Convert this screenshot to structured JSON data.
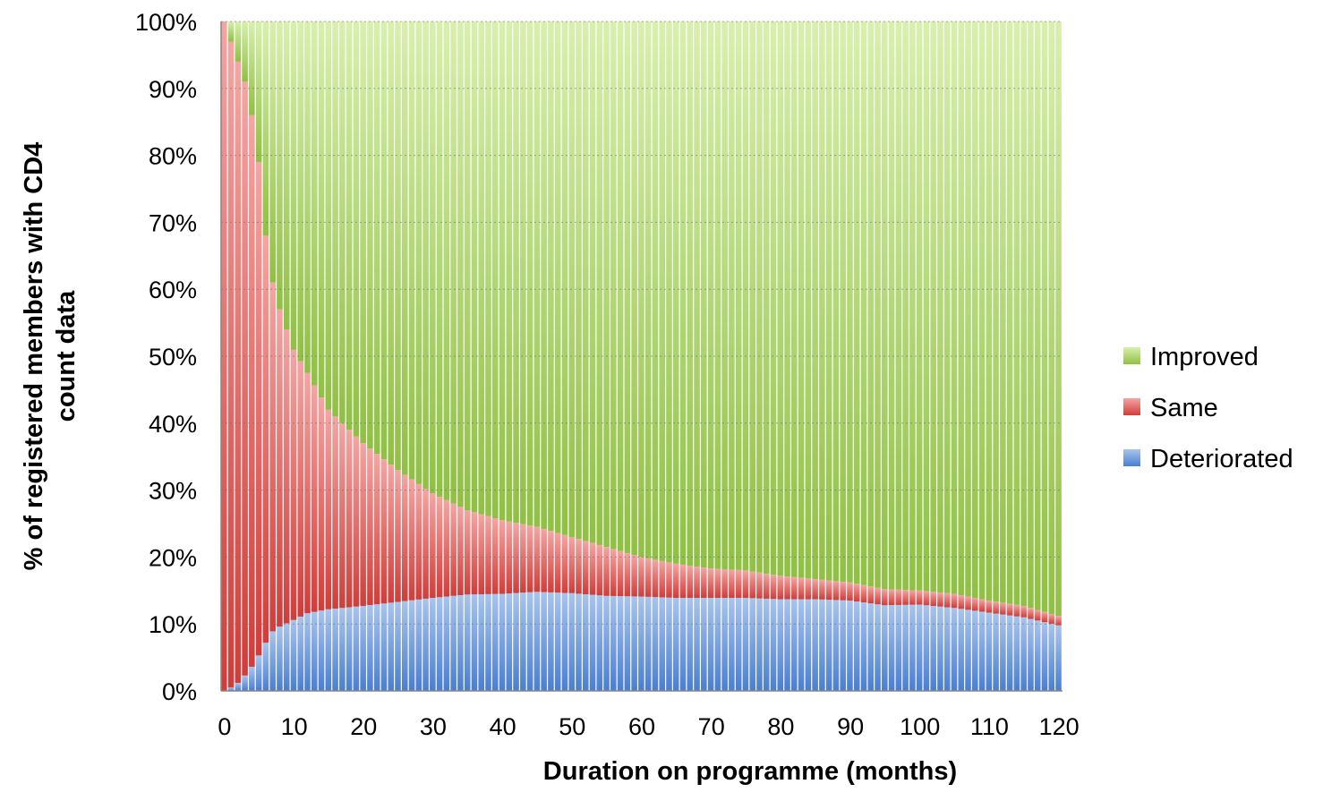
{
  "chart_data": {
    "type": "bar",
    "stacked": "percent",
    "title": "",
    "xlabel": "Duration on programme (months)",
    "ylabel": "% of registered members  with CD4 count data",
    "ylabel_lines": [
      "% of registered members  with CD4",
      "count data"
    ],
    "x_range": [
      0,
      120
    ],
    "x_ticks": [
      "0",
      "10",
      "20",
      "30",
      "40",
      "50",
      "60",
      "70",
      "80",
      "90",
      "100",
      "110",
      "120"
    ],
    "y_ticks": [
      "0%",
      "10%",
      "20%",
      "30%",
      "40%",
      "50%",
      "60%",
      "70%",
      "80%",
      "90%",
      "100%"
    ],
    "ylim": [
      0,
      100
    ],
    "grid": "horizontal dotted",
    "legend_position": "right",
    "legend": [
      "Improved",
      "Same",
      "Deteriorated"
    ],
    "series": [
      {
        "name": "Deteriorated",
        "color": "#4f81bd"
      },
      {
        "name": "Same",
        "color": "#c0504d"
      },
      {
        "name": "Improved",
        "color": "#9bbb59"
      }
    ],
    "keypoints": {
      "month": [
        0,
        1,
        2,
        3,
        4,
        5,
        6,
        7,
        8,
        9,
        10,
        12,
        15,
        20,
        25,
        30,
        35,
        40,
        45,
        50,
        55,
        60,
        65,
        70,
        75,
        80,
        85,
        90,
        95,
        100,
        105,
        110,
        115,
        120
      ],
      "deteriorated_pct": [
        0,
        0.5,
        1.2,
        2.3,
        3.6,
        5.3,
        7.2,
        8.9,
        9.6,
        10.1,
        10.6,
        11.6,
        12.2,
        12.7,
        13.3,
        13.9,
        14.4,
        14.5,
        14.8,
        14.6,
        14.2,
        14.1,
        13.9,
        13.9,
        13.9,
        13.7,
        13.7,
        13.5,
        12.8,
        12.9,
        12.4,
        11.7,
        11.0,
        9.8
      ],
      "deteriorated_or_same_pct": [
        100,
        97,
        94,
        91,
        86,
        79,
        68,
        61,
        57,
        54,
        51,
        47.5,
        42,
        37,
        33,
        29.5,
        27,
        25.5,
        24.5,
        23,
        21.5,
        20,
        19,
        18.3,
        18,
        17.2,
        16.7,
        16.2,
        15.2,
        15,
        14.5,
        13.5,
        12.7,
        11.2
      ]
    }
  }
}
